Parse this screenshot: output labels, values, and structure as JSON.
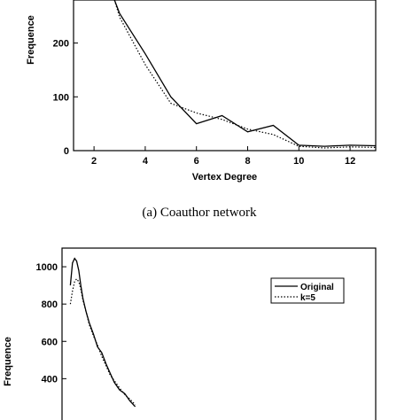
{
  "chart_data": [
    {
      "type": "line",
      "caption": "(a) Coauthor network",
      "xlabel": "Vertex Degree",
      "ylabel": "Frequence",
      "xlim": [
        1.2,
        13
      ],
      "ylim": [
        0,
        280
      ],
      "xticks": [
        "2",
        "4",
        "6",
        "8",
        "10",
        "12"
      ],
      "yticks": [
        "0",
        "100",
        "200"
      ],
      "series": [
        {
          "name": "Original",
          "style": "solid",
          "x": [
            2.8,
            3,
            4,
            5,
            6,
            7,
            8,
            9,
            10,
            11,
            12,
            13
          ],
          "y": [
            280,
            255,
            180,
            100,
            50,
            65,
            35,
            47,
            10,
            8,
            10,
            9
          ]
        },
        {
          "name": "k=5",
          "style": "dotted",
          "x": [
            2.8,
            3,
            4,
            5,
            6,
            7,
            8,
            9,
            10,
            11,
            12,
            13
          ],
          "y": [
            280,
            248,
            160,
            88,
            70,
            58,
            40,
            30,
            8,
            5,
            7,
            6
          ]
        }
      ]
    },
    {
      "type": "line",
      "xlabel": "",
      "ylabel": "Frequence",
      "xlim": [
        0,
        30
      ],
      "ylim": [
        150,
        1100
      ],
      "yticks": [
        "400",
        "600",
        "800",
        "1000"
      ],
      "legend": {
        "position": "top-right",
        "entries": [
          "Original",
          "k=5"
        ]
      },
      "series": [
        {
          "name": "Original",
          "style": "solid",
          "x": [
            0.8,
            1.0,
            1.2,
            1.4,
            1.6,
            1.8,
            2.0,
            2.3,
            2.6,
            3.0,
            3.4,
            3.8,
            4.2,
            4.6,
            5.0,
            5.5,
            6.0,
            6.5,
            7.0
          ],
          "y": [
            900,
            1020,
            1045,
            1030,
            980,
            900,
            830,
            760,
            700,
            640,
            570,
            540,
            480,
            430,
            380,
            340,
            320,
            280,
            250
          ]
        },
        {
          "name": "k=5",
          "style": "dotted",
          "x": [
            0.8,
            1.0,
            1.2,
            1.4,
            1.6,
            1.8,
            2.0,
            2.3,
            2.6,
            3.0,
            3.4,
            3.8,
            4.2,
            4.6,
            5.0,
            5.5,
            6.0,
            6.5,
            7.0
          ],
          "y": [
            800,
            870,
            920,
            935,
            920,
            880,
            820,
            760,
            690,
            630,
            580,
            520,
            470,
            420,
            390,
            350,
            315,
            290,
            260
          ]
        }
      ]
    }
  ]
}
